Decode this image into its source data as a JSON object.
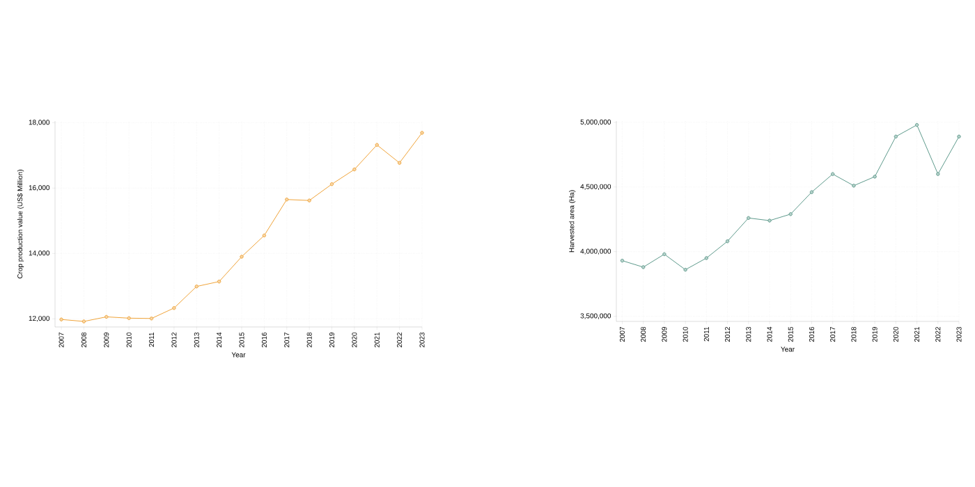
{
  "chart_data": [
    {
      "type": "line",
      "xlabel": "Year",
      "ylabel": "Crop production value (US$ Million)",
      "categories": [
        "2007",
        "2008",
        "2009",
        "2010",
        "2011",
        "2012",
        "2013",
        "2014",
        "2015",
        "2016",
        "2017",
        "2018",
        "2019",
        "2020",
        "2021",
        "2022",
        "2023"
      ],
      "series": [
        {
          "color": "#f0a43a",
          "values": [
            11980,
            11920,
            12060,
            12020,
            12010,
            12330,
            12990,
            13140,
            13900,
            14550,
            15650,
            15620,
            16120,
            16570,
            17320,
            16770,
            17690
          ]
        }
      ],
      "ylim": [
        11750,
        18050
      ],
      "yticks": [
        {
          "value": 12000,
          "label": "12,000"
        },
        {
          "value": 14000,
          "label": "14,000"
        },
        {
          "value": 16000,
          "label": "16,000"
        },
        {
          "value": 18000,
          "label": "18,000"
        }
      ],
      "grid": true,
      "marker": "circle",
      "line_style": "solid"
    },
    {
      "type": "line",
      "xlabel": "Year",
      "ylabel": "Harvested area (Ha)",
      "categories": [
        "2007",
        "2008",
        "2009",
        "2010",
        "2011",
        "2012",
        "2013",
        "2014",
        "2015",
        "2016",
        "2017",
        "2018",
        "2019",
        "2020",
        "2021",
        "2022",
        "2023"
      ],
      "series": [
        {
          "color": "#5e9a8c",
          "values": [
            3930000,
            3880000,
            3980000,
            3860000,
            3950000,
            4080000,
            4260000,
            4240000,
            4290000,
            4460000,
            4600000,
            4510000,
            4580000,
            4890000,
            4980000,
            4600000,
            4890000
          ]
        }
      ],
      "ylim": [
        3460000,
        5010000
      ],
      "yticks": [
        {
          "value": 3500000,
          "label": "3,500,000"
        },
        {
          "value": 4000000,
          "label": "4,000,000"
        },
        {
          "value": 4500000,
          "label": "4,500,000"
        },
        {
          "value": 5000000,
          "label": "5,000,000"
        }
      ],
      "grid": true,
      "marker": "circle",
      "line_style": "solid"
    }
  ]
}
